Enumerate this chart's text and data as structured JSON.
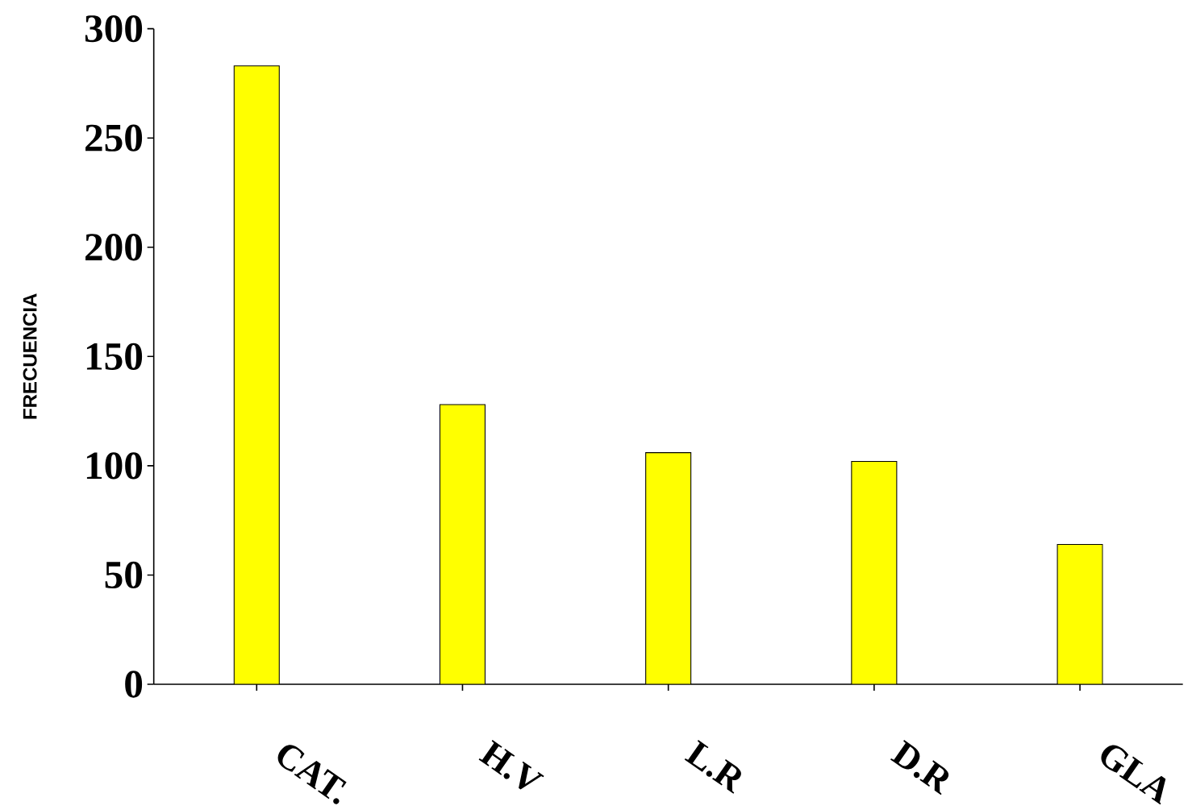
{
  "chart_data": {
    "type": "bar",
    "ylabel": "FRECUENCIA",
    "categories": [
      "CAT.",
      "H.V",
      "L.R",
      "D.R",
      "GLA"
    ],
    "values": [
      283,
      128,
      106,
      102,
      64
    ],
    "color": "#ffff00",
    "ylim": [
      0,
      300
    ],
    "yticks": [
      0,
      50,
      100,
      150,
      200,
      250,
      300
    ]
  }
}
